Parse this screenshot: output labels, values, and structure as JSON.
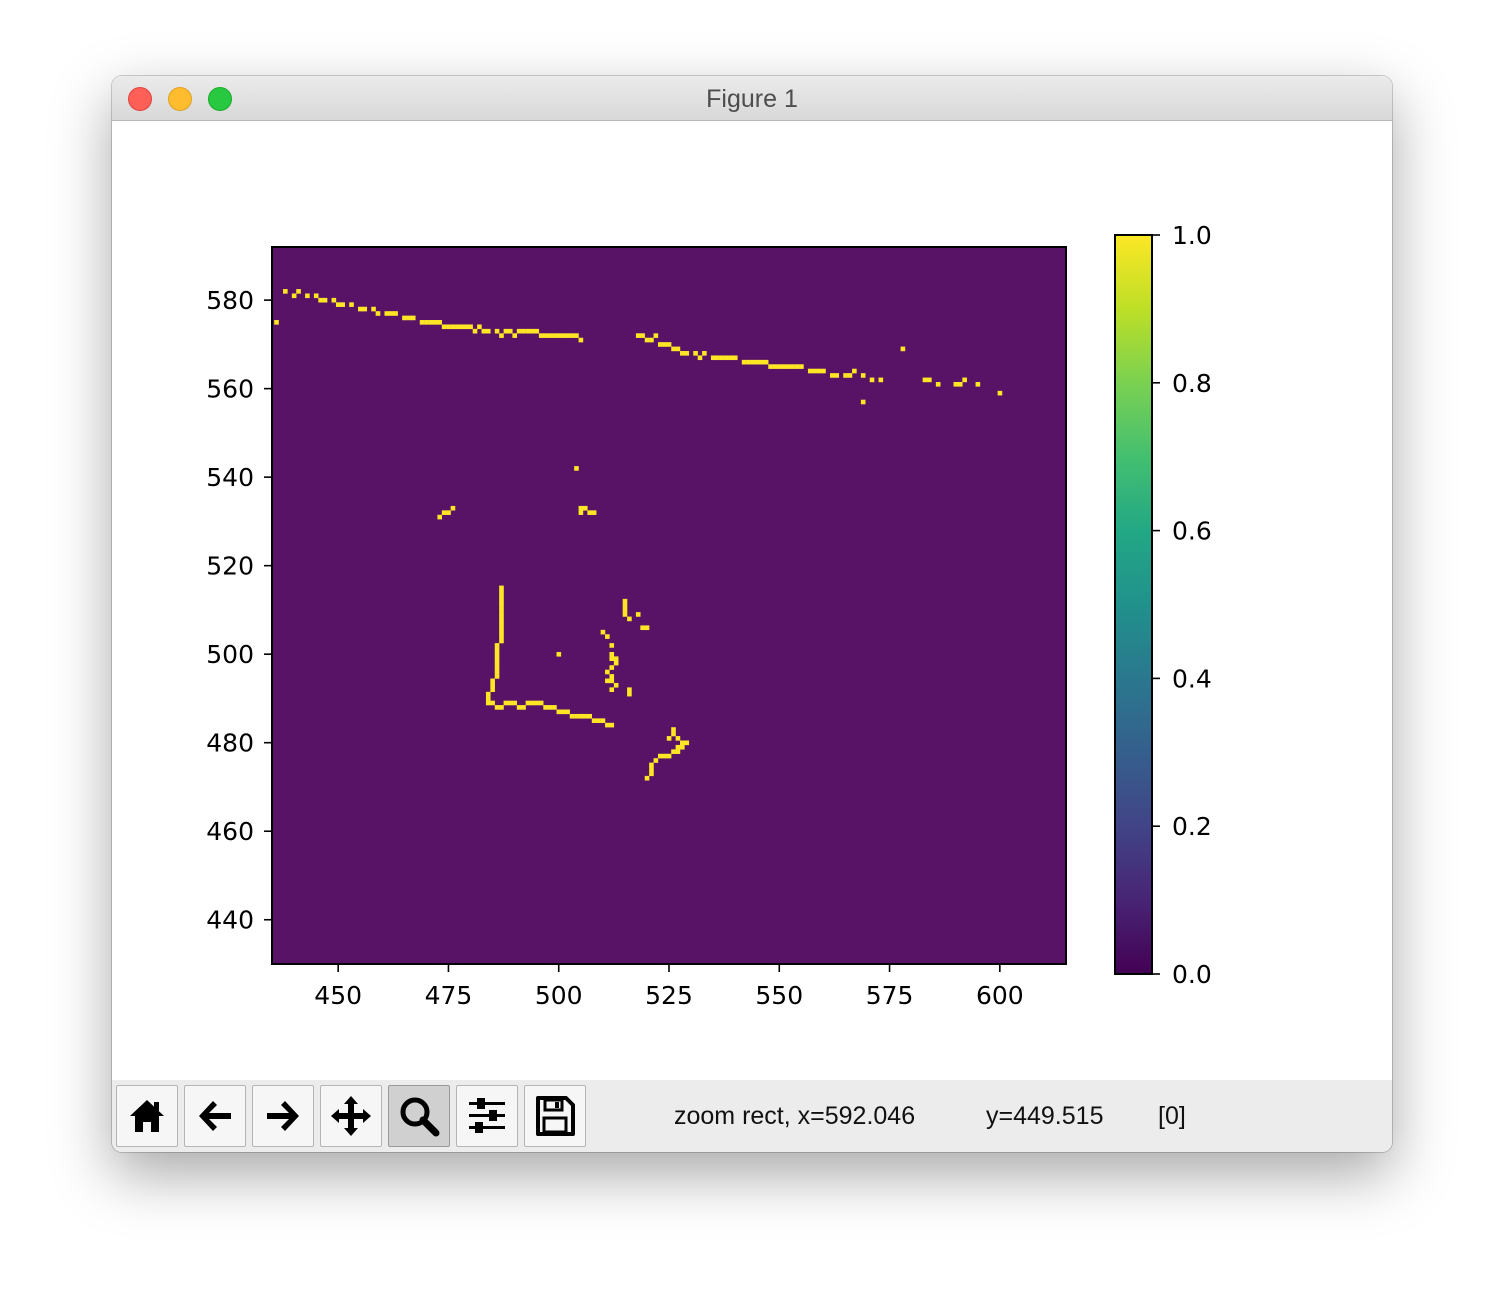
{
  "window": {
    "title": "Figure 1"
  },
  "toolbar": {
    "buttons": [
      {
        "name": "home-button",
        "icon": "home-icon",
        "tooltip": "Reset original view"
      },
      {
        "name": "back-button",
        "icon": "arrow-left-icon",
        "tooltip": "Back to previous view"
      },
      {
        "name": "forward-button",
        "icon": "arrow-right-icon",
        "tooltip": "Forward to next view"
      },
      {
        "name": "pan-button",
        "icon": "move-icon",
        "tooltip": "Pan axes"
      },
      {
        "name": "zoom-button",
        "icon": "zoom-icon",
        "tooltip": "Zoom to rectangle",
        "active": true
      },
      {
        "name": "configure-subplots-button",
        "icon": "sliders-icon",
        "tooltip": "Configure subplots"
      },
      {
        "name": "save-button",
        "icon": "floppy-disk-icon",
        "tooltip": "Save the figure"
      }
    ],
    "status_mode": "zoom rect, x=592.046",
    "status_y": "y=449.515",
    "status_value": "[0]"
  },
  "chart_data": {
    "type": "heatmap",
    "title": "",
    "xlabel": "",
    "ylabel": "",
    "xlim": [
      435,
      615
    ],
    "ylim": [
      430,
      592
    ],
    "xticks": [
      450,
      475,
      500,
      525,
      550,
      575,
      600
    ],
    "yticks": [
      440,
      460,
      480,
      500,
      520,
      540,
      560,
      580
    ],
    "colormap": "viridis",
    "background_value": 0,
    "colorbar": {
      "range": [
        0.0,
        1.0
      ],
      "ticks": [
        "0.0",
        "0.2",
        "0.4",
        "0.6",
        "0.8",
        "1.0"
      ]
    },
    "colors": {
      "low": "#440154",
      "high": "#fde725",
      "mid": "#21918c"
    },
    "value_one_cells": [
      [
        436,
        575
      ],
      [
        438,
        582
      ],
      [
        440,
        581
      ],
      [
        441,
        582
      ],
      [
        443,
        581
      ],
      [
        445,
        581
      ],
      [
        446,
        580
      ],
      [
        447,
        580
      ],
      [
        449,
        580
      ],
      [
        450,
        579
      ],
      [
        451,
        579
      ],
      [
        453,
        579
      ],
      [
        455,
        578
      ],
      [
        456,
        578
      ],
      [
        458,
        578
      ],
      [
        459,
        577
      ],
      [
        461,
        577
      ],
      [
        462,
        577
      ],
      [
        463,
        577
      ],
      [
        465,
        576
      ],
      [
        466,
        576
      ],
      [
        467,
        576
      ],
      [
        469,
        575
      ],
      [
        470,
        575
      ],
      [
        471,
        575
      ],
      [
        472,
        575
      ],
      [
        473,
        575
      ],
      [
        474,
        574
      ],
      [
        475,
        574
      ],
      [
        476,
        574
      ],
      [
        477,
        574
      ],
      [
        478,
        574
      ],
      [
        479,
        574
      ],
      [
        480,
        574
      ],
      [
        481,
        573
      ],
      [
        482,
        574
      ],
      [
        483,
        573
      ],
      [
        484,
        573
      ],
      [
        486,
        573
      ],
      [
        487,
        572
      ],
      [
        488,
        573
      ],
      [
        489,
        573
      ],
      [
        490,
        572
      ],
      [
        491,
        573
      ],
      [
        492,
        573
      ],
      [
        493,
        573
      ],
      [
        494,
        573
      ],
      [
        495,
        573
      ],
      [
        496,
        572
      ],
      [
        497,
        572
      ],
      [
        498,
        572
      ],
      [
        499,
        572
      ],
      [
        500,
        572
      ],
      [
        501,
        572
      ],
      [
        502,
        572
      ],
      [
        503,
        572
      ],
      [
        504,
        572
      ],
      [
        505,
        571
      ],
      [
        518,
        572
      ],
      [
        519,
        572
      ],
      [
        520,
        571
      ],
      [
        521,
        571
      ],
      [
        522,
        572
      ],
      [
        523,
        570
      ],
      [
        524,
        570
      ],
      [
        525,
        570
      ],
      [
        526,
        569
      ],
      [
        527,
        569
      ],
      [
        528,
        568
      ],
      [
        529,
        568
      ],
      [
        531,
        568
      ],
      [
        532,
        567
      ],
      [
        533,
        568
      ],
      [
        535,
        567
      ],
      [
        536,
        567
      ],
      [
        537,
        567
      ],
      [
        538,
        567
      ],
      [
        539,
        567
      ],
      [
        540,
        567
      ],
      [
        542,
        566
      ],
      [
        543,
        566
      ],
      [
        544,
        566
      ],
      [
        545,
        566
      ],
      [
        546,
        566
      ],
      [
        547,
        566
      ],
      [
        548,
        565
      ],
      [
        549,
        565
      ],
      [
        550,
        565
      ],
      [
        551,
        565
      ],
      [
        552,
        565
      ],
      [
        553,
        565
      ],
      [
        554,
        565
      ],
      [
        555,
        565
      ],
      [
        557,
        564
      ],
      [
        558,
        564
      ],
      [
        559,
        564
      ],
      [
        560,
        564
      ],
      [
        562,
        563
      ],
      [
        563,
        563
      ],
      [
        565,
        563
      ],
      [
        566,
        563
      ],
      [
        567,
        564
      ],
      [
        569,
        563
      ],
      [
        571,
        562
      ],
      [
        573,
        562
      ],
      [
        578,
        569
      ],
      [
        583,
        562
      ],
      [
        584,
        562
      ],
      [
        586,
        561
      ],
      [
        590,
        561
      ],
      [
        591,
        561
      ],
      [
        592,
        562
      ],
      [
        595,
        561
      ],
      [
        600,
        559
      ],
      [
        569,
        557
      ],
      [
        504,
        542
      ],
      [
        505,
        533
      ],
      [
        506,
        533
      ],
      [
        507,
        532
      ],
      [
        508,
        532
      ],
      [
        505,
        532
      ],
      [
        473,
        531
      ],
      [
        474,
        532
      ],
      [
        475,
        532
      ],
      [
        476,
        533
      ],
      [
        487,
        515
      ],
      [
        487,
        514
      ],
      [
        487,
        513
      ],
      [
        487,
        512
      ],
      [
        487,
        511
      ],
      [
        487,
        510
      ],
      [
        487,
        509
      ],
      [
        487,
        508
      ],
      [
        487,
        507
      ],
      [
        487,
        506
      ],
      [
        487,
        505
      ],
      [
        487,
        504
      ],
      [
        487,
        503
      ],
      [
        486,
        502
      ],
      [
        486,
        501
      ],
      [
        486,
        500
      ],
      [
        486,
        499
      ],
      [
        486,
        498
      ],
      [
        486,
        497
      ],
      [
        486,
        496
      ],
      [
        486,
        495
      ],
      [
        485,
        494
      ],
      [
        485,
        493
      ],
      [
        485,
        492
      ],
      [
        484,
        491
      ],
      [
        484,
        490
      ],
      [
        484,
        489
      ],
      [
        485,
        489
      ],
      [
        486,
        488
      ],
      [
        487,
        488
      ],
      [
        488,
        489
      ],
      [
        489,
        489
      ],
      [
        490,
        489
      ],
      [
        491,
        488
      ],
      [
        492,
        488
      ],
      [
        493,
        489
      ],
      [
        494,
        489
      ],
      [
        495,
        489
      ],
      [
        496,
        489
      ],
      [
        497,
        488
      ],
      [
        498,
        488
      ],
      [
        499,
        488
      ],
      [
        500,
        487
      ],
      [
        501,
        487
      ],
      [
        502,
        487
      ],
      [
        503,
        486
      ],
      [
        504,
        486
      ],
      [
        505,
        486
      ],
      [
        506,
        486
      ],
      [
        507,
        486
      ],
      [
        508,
        485
      ],
      [
        509,
        485
      ],
      [
        510,
        485
      ],
      [
        511,
        484
      ],
      [
        512,
        484
      ],
      [
        515,
        512
      ],
      [
        515,
        511
      ],
      [
        515,
        510
      ],
      [
        515,
        509
      ],
      [
        516,
        508
      ],
      [
        518,
        509
      ],
      [
        519,
        506
      ],
      [
        520,
        506
      ],
      [
        510,
        505
      ],
      [
        511,
        504
      ],
      [
        512,
        502
      ],
      [
        512,
        500
      ],
      [
        512,
        499
      ],
      [
        513,
        499
      ],
      [
        513,
        498
      ],
      [
        512,
        497
      ],
      [
        511,
        496
      ],
      [
        512,
        495
      ],
      [
        511,
        494
      ],
      [
        512,
        494
      ],
      [
        513,
        493
      ],
      [
        512,
        492
      ],
      [
        516,
        491
      ],
      [
        516,
        492
      ],
      [
        500,
        500
      ],
      [
        526,
        483
      ],
      [
        526,
        482
      ],
      [
        527,
        481
      ],
      [
        528,
        480
      ],
      [
        529,
        480
      ],
      [
        528,
        479
      ],
      [
        527,
        479
      ],
      [
        527,
        478
      ],
      [
        526,
        478
      ],
      [
        525,
        477
      ],
      [
        524,
        477
      ],
      [
        523,
        477
      ],
      [
        522,
        476
      ],
      [
        521,
        475
      ],
      [
        521,
        474
      ],
      [
        521,
        473
      ],
      [
        520,
        472
      ],
      [
        525,
        481
      ]
    ]
  }
}
